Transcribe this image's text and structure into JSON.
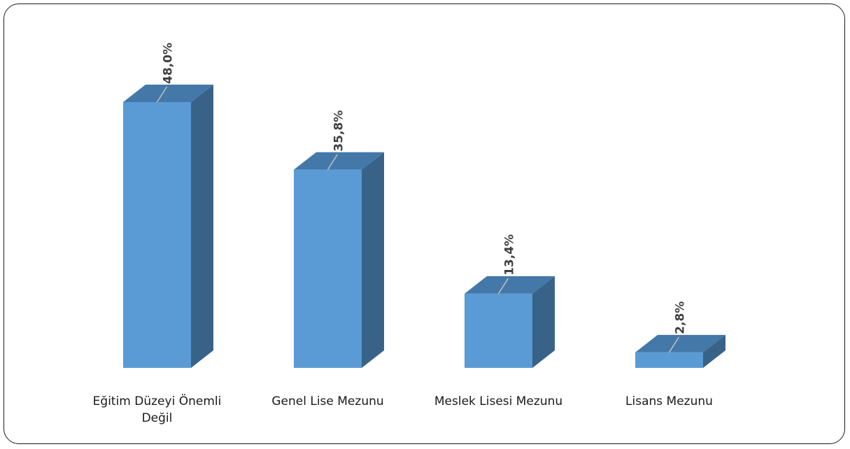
{
  "chart_data": {
    "type": "bar",
    "style": "3d-column",
    "categories": [
      "Eğitim Düzeyi Önemli Değil",
      "Genel Lise Mezunu",
      "Meslek Lisesi Mezunu",
      "Lisans Mezunu"
    ],
    "values": [
      48.0,
      35.8,
      13.4,
      2.8
    ],
    "value_labels": [
      "48,0%",
      "35,8%",
      "13,4%",
      "2,8%"
    ],
    "unit": "%",
    "title": "",
    "xlabel": "",
    "ylabel": "",
    "ylim": [
      0,
      50
    ],
    "grid": false,
    "legend": "none",
    "colors": {
      "front": "#5b9bd5",
      "side": "#386288",
      "top": "#4478a8",
      "label_text": "#404040",
      "leader_line": "#bfbfbf"
    }
  }
}
